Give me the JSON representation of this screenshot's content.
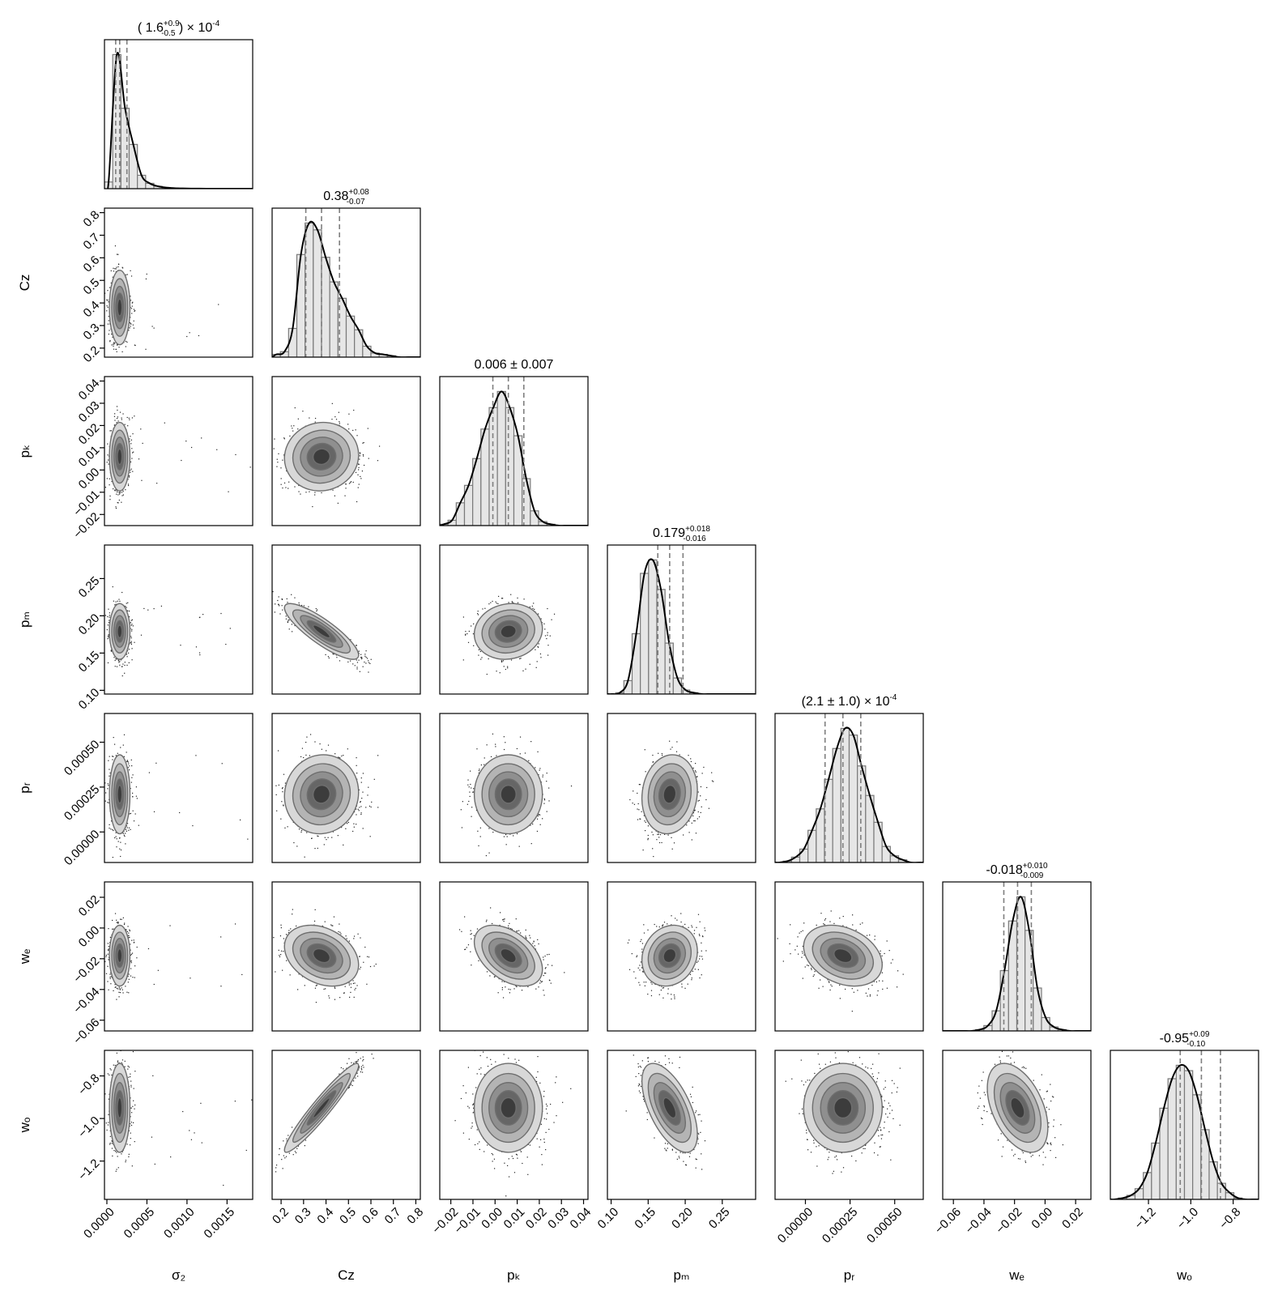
{
  "chart_data": {
    "type": "corner",
    "colors": {
      "hist_fill": "#e6e6e6",
      "hist_edge": "#7a7a7a",
      "kde_line": "#000000",
      "quantile_line": "#7f7f7f",
      "contour_line": "#6e6e6e",
      "scatter_point": "#222222"
    },
    "parameters": [
      {
        "name": "σz",
        "xlabel": "σ₂",
        "ylabel": "",
        "range": [
          -3e-05,
          0.00182
        ],
        "ticks": [
          0.0,
          0.0005,
          0.001,
          0.0015
        ],
        "tick_labels": [
          "0.0000",
          "0.0005",
          "0.0010",
          "0.0015"
        ],
        "median": 0.00016,
        "q_low": 0.00011,
        "q_high": 0.00025,
        "title": {
          "pre": "( 1.6",
          "sup": "+0.9",
          "sub": "-0.5",
          "post": " ) × 10",
          "exp": "-4"
        },
        "hist_values": [
          0.05,
          1.0,
          0.6,
          0.33,
          0.1,
          0.04,
          0.018,
          0.008,
          0.004,
          0.002,
          0.001,
          0.0005,
          0.0002,
          0.0001,
          0.0,
          0.0,
          0.0,
          0.0
        ]
      },
      {
        "name": "Cz",
        "xlabel": "Cz",
        "ylabel": "Cz",
        "range": [
          0.16,
          0.82
        ],
        "ticks": [
          0.2,
          0.3,
          0.4,
          0.5,
          0.6,
          0.7,
          0.8
        ],
        "tick_labels": [
          "0.2",
          "0.3",
          "0.4",
          "0.5",
          "0.6",
          "0.7",
          "0.8"
        ],
        "median": 0.38,
        "q_low": 0.31,
        "q_high": 0.46,
        "title": {
          "pre": "0.38",
          "sup": "+0.08",
          "sub": "-0.07",
          "post": "",
          "exp": ""
        },
        "hist_values": [
          0.02,
          0.04,
          0.21,
          0.75,
          0.98,
          0.93,
          0.73,
          0.55,
          0.43,
          0.3,
          0.2,
          0.08,
          0.03,
          0.02,
          0.01,
          0.0,
          0.0,
          0.0
        ]
      },
      {
        "name": "pk",
        "xlabel": "pₖ",
        "ylabel": "pₖ",
        "range": [
          -0.025,
          0.042
        ],
        "ticks": [
          -0.02,
          -0.01,
          0.0,
          0.01,
          0.02,
          0.03,
          0.04
        ],
        "tick_labels": [
          "-0.02",
          "-0.01",
          "0.00",
          "0.01",
          "0.02",
          "0.03",
          "0.04"
        ],
        "median": 0.006,
        "q_low": -0.001,
        "q_high": 0.013,
        "title": {
          "pre": "0.006 ± 0.007",
          "sup": "",
          "sub": "",
          "post": "",
          "exp": ""
        },
        "hist_values": [
          0.01,
          0.04,
          0.17,
          0.3,
          0.5,
          0.72,
          0.88,
          1.0,
          0.88,
          0.67,
          0.35,
          0.11,
          0.03,
          0.01,
          0.0,
          0.0,
          0.0,
          0.0
        ]
      },
      {
        "name": "pm",
        "xlabel": "pₘ",
        "ylabel": "pₘ",
        "range": [
          0.095,
          0.295
        ],
        "ticks": [
          0.1,
          0.15,
          0.2,
          0.25
        ],
        "tick_labels": [
          "0.10",
          "0.15",
          "0.20",
          "0.25"
        ],
        "median": 0.179,
        "q_low": 0.163,
        "q_high": 0.197,
        "title": {
          "pre": "0.179",
          "sup": "+0.018",
          "sub": "-0.016",
          "post": "",
          "exp": ""
        },
        "hist_values": [
          0.0,
          0.01,
          0.1,
          0.45,
          0.9,
          1.0,
          0.78,
          0.38,
          0.12,
          0.03,
          0.01,
          0.0,
          0.0,
          0.0,
          0.0,
          0.0,
          0.0,
          0.0
        ]
      },
      {
        "name": "pr",
        "xlabel": "pᵣ",
        "ylabel": "pᵣ",
        "range": [
          -0.00017,
          0.00066
        ],
        "ticks": [
          0.0,
          0.00025,
          0.0005
        ],
        "tick_labels": [
          "0.00000",
          "0.00025",
          "0.00050"
        ],
        "median": 0.00021,
        "q_low": 0.00011,
        "q_high": 0.00031,
        "title": {
          "pre": "(2.1 ± 1.0) × 10",
          "sup": "",
          "sub": "",
          "post": "",
          "exp": "-4"
        },
        "hist_values": [
          0.0,
          0.01,
          0.04,
          0.1,
          0.24,
          0.4,
          0.62,
          0.85,
          1.0,
          0.95,
          0.72,
          0.5,
          0.3,
          0.12,
          0.05,
          0.02,
          0.0,
          0.0
        ]
      },
      {
        "name": "we",
        "xlabel": "wₑ",
        "ylabel": "wₑ",
        "range": [
          -0.067,
          0.03
        ],
        "ticks": [
          -0.06,
          -0.04,
          -0.02,
          0.0,
          0.02
        ],
        "tick_labels": [
          "-0.06",
          "-0.04",
          "-0.02",
          "0.00",
          "0.02"
        ],
        "median": -0.018,
        "q_low": -0.027,
        "q_high": -0.009,
        "title": {
          "pre": "-0.018",
          "sup": "+0.010",
          "sub": "-0.009",
          "post": "",
          "exp": ""
        },
        "hist_values": [
          0.0,
          0.0,
          0.0,
          0.0,
          0.01,
          0.04,
          0.15,
          0.45,
          0.82,
          1.0,
          0.75,
          0.32,
          0.1,
          0.03,
          0.01,
          0.0,
          0.0,
          0.0
        ]
      },
      {
        "name": "wo",
        "xlabel": "wₒ",
        "ylabel": "wₒ",
        "range": [
          -1.38,
          -0.68
        ],
        "ticks": [
          -1.2,
          -1.0,
          -0.8
        ],
        "tick_labels": [
          "−1.2",
          "−1.0",
          "−0.8"
        ],
        "median": -0.95,
        "q_low": -1.05,
        "q_high": -0.86,
        "title": {
          "pre": "-0.95",
          "sup": "+0.09",
          "sub": "-0.10",
          "post": "",
          "exp": ""
        },
        "hist_values": [
          0.0,
          0.01,
          0.03,
          0.08,
          0.2,
          0.42,
          0.68,
          0.9,
          1.0,
          0.96,
          0.78,
          0.52,
          0.28,
          0.12,
          0.05,
          0.01,
          0.0,
          0.0
        ]
      }
    ],
    "y_tick_labels": {
      "Cz": [
        "0.2",
        "0.3",
        "0.4",
        "0.5",
        "0.6",
        "0.7",
        "0.8"
      ],
      "pk": [
        "−0.02",
        "−0.01",
        "0.00",
        "0.01",
        "0.02",
        "0.03",
        "0.04"
      ],
      "pm": [
        "0.10",
        "0.15",
        "0.20",
        "0.25"
      ],
      "pr": [
        "0.00000",
        "0.00025",
        "0.00050"
      ],
      "we": [
        "−0.06",
        "−0.04",
        "−0.02",
        "0.00",
        "0.02"
      ],
      "wo": [
        "−1.2",
        "−1.0",
        "−0.8"
      ]
    },
    "x_tick_labels": {
      "σz": [
        "0.0000",
        "0.0005",
        "0.0010",
        "0.0015"
      ],
      "Cz": [
        "0.2",
        "0.3",
        "0.4",
        "0.5",
        "0.6",
        "0.7",
        "0.8"
      ],
      "pk": [
        "−0.02",
        "−0.01",
        "0.00",
        "0.01",
        "0.02",
        "0.03",
        "0.04"
      ],
      "pm": [
        "0.10",
        "0.15",
        "0.20",
        "0.25"
      ],
      "pr": [
        "0.00000",
        "0.00025",
        "0.00050"
      ],
      "we": [
        "−0.06",
        "−0.04",
        "−0.02",
        "0.00",
        "0.02"
      ],
      "wo": [
        "−1.2",
        "−1.0",
        "−0.8"
      ]
    },
    "correlations": {
      "1,0": 0.0,
      "2,0": 0.0,
      "2,1": 0.05,
      "3,0": 0.0,
      "3,1": -0.85,
      "3,2": 0.1,
      "4,0": 0.0,
      "4,1": 0.05,
      "4,2": 0.0,
      "4,3": 0.1,
      "5,0": 0.0,
      "5,1": -0.3,
      "5,2": -0.45,
      "5,3": 0.15,
      "5,4": -0.3,
      "6,0": 0.0,
      "6,1": 0.95,
      "6,2": 0.0,
      "6,3": -0.6,
      "6,4": 0.0,
      "6,5": -0.45
    },
    "grid": false,
    "legend": "none"
  }
}
